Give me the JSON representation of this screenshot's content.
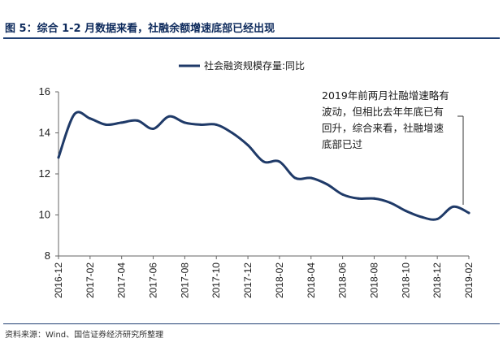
{
  "figure": {
    "title": "图 5：综合 1-2 月数据来看，社融余额增速底部已经出现",
    "source": "资料来源：Wind、国信证券经济研究所整理",
    "annotation": "2019年前两月社融增速略有波动，但相比去年年底已有回升，综合来看，社融增速底部已过"
  },
  "colors": {
    "line": "#1f3a68",
    "text": "#1a1a1a",
    "title": "#0d2a5c"
  },
  "chart_data": {
    "type": "line",
    "title": "",
    "xlabel": "",
    "ylabel": "",
    "ylim": [
      8,
      16
    ],
    "yticks": [
      "16",
      "14",
      "12",
      "10",
      "8"
    ],
    "legend_position": "top-center",
    "grid": false,
    "xtick_labels": [
      "2016-12",
      "2017-02",
      "2017-04",
      "2017-06",
      "2017-08",
      "2017-10",
      "2017-12",
      "2018-02",
      "2018-04",
      "2018-06",
      "2018-08",
      "2018-10",
      "2018-12",
      "2019-02"
    ],
    "x": [
      "2016-12",
      "2017-01",
      "2017-02",
      "2017-03",
      "2017-04",
      "2017-05",
      "2017-06",
      "2017-07",
      "2017-08",
      "2017-09",
      "2017-10",
      "2017-11",
      "2017-12",
      "2018-01",
      "2018-02",
      "2018-03",
      "2018-04",
      "2018-05",
      "2018-06",
      "2018-07",
      "2018-08",
      "2018-09",
      "2018-10",
      "2018-11",
      "2018-12",
      "2019-01",
      "2019-02"
    ],
    "series": [
      {
        "name": "社会融资规模存量:同比",
        "values": [
          12.8,
          14.9,
          14.7,
          14.4,
          14.5,
          14.6,
          14.2,
          14.8,
          14.5,
          14.4,
          14.4,
          14.0,
          13.4,
          12.6,
          12.6,
          11.8,
          11.8,
          11.5,
          11.0,
          10.8,
          10.8,
          10.6,
          10.2,
          9.9,
          9.8,
          10.4,
          10.1
        ]
      }
    ]
  }
}
